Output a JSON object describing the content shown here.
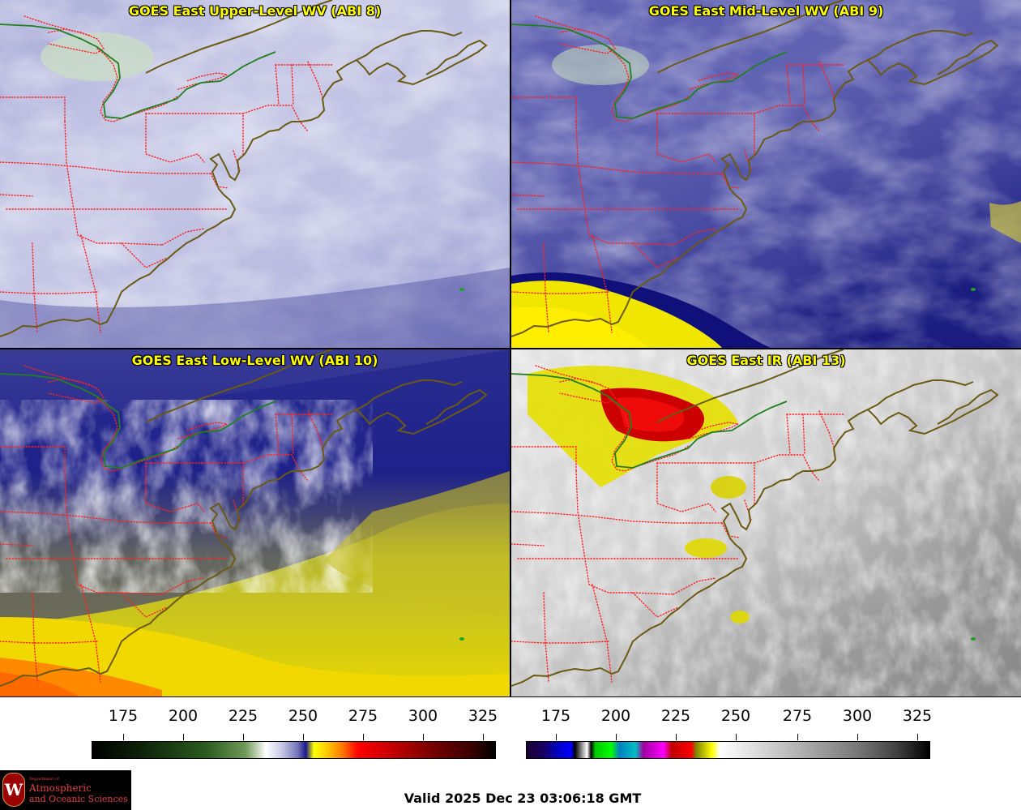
{
  "panels": [
    {
      "id": "p1",
      "title": "GOES East Upper-Level WV (ABI 8)",
      "palette": "wv",
      "style": "upper"
    },
    {
      "id": "p2",
      "title": "GOES East Mid-Level WV (ABI 9)",
      "palette": "wv",
      "style": "mid"
    },
    {
      "id": "p3",
      "title": "GOES East Low-Level WV (ABI 10)",
      "palette": "wv",
      "style": "low"
    },
    {
      "id": "p4",
      "title": "GOES East IR (ABI 13)",
      "palette": "ir",
      "style": "ir"
    }
  ],
  "colorbars": [
    {
      "id": "wv-colorbar",
      "ticks": [
        "175",
        "200",
        "225",
        "250",
        "275",
        "300",
        "325"
      ]
    },
    {
      "id": "ir-colorbar",
      "ticks": [
        "175",
        "200",
        "225",
        "250",
        "275",
        "300",
        "325"
      ]
    }
  ],
  "colors": {
    "state_border": "#ff2020",
    "coastline": "#6b5a12",
    "canada_border": "#208020"
  },
  "footer": {
    "valid": "Valid 2025 Dec 23 03:06:18 GMT"
  },
  "logo": {
    "dept": "Department of",
    "line1": "Atmospheric",
    "line2": "and Oceanic Sciences",
    "seal": "W"
  }
}
